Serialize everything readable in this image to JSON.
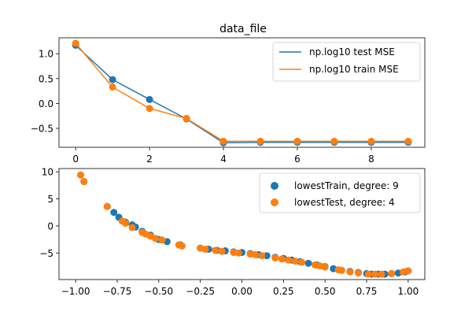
{
  "colors": {
    "test": "#1f77b4",
    "train": "#ff7f0e",
    "axis": "#000000",
    "legend_border": "#cccccc"
  },
  "chart_data": [
    {
      "type": "line",
      "title": "data_file",
      "xlabel": "",
      "ylabel": "",
      "xlim": [
        -0.45,
        9.45
      ],
      "ylim": [
        -0.88,
        1.32
      ],
      "xticks": [
        0,
        2,
        4,
        6,
        8
      ],
      "xtick_labels": [
        "0",
        "2",
        "4",
        "6",
        "8"
      ],
      "yticks": [
        -0.5,
        0.0,
        0.5,
        1.0
      ],
      "ytick_labels": [
        "−0.5",
        "0.0",
        "0.5",
        "1.0"
      ],
      "grid": false,
      "legend_position": "top-right",
      "x": [
        0,
        1,
        2,
        3,
        4,
        5,
        6,
        7,
        8,
        9
      ],
      "series": [
        {
          "name": "np.log10 test MSE",
          "color": "#1f77b4",
          "values": [
            1.17,
            0.48,
            0.08,
            -0.31,
            -0.79,
            -0.78,
            -0.78,
            -0.78,
            -0.78,
            -0.78
          ]
        },
        {
          "name": "np.log10 train MSE",
          "color": "#ff7f0e",
          "values": [
            1.21,
            0.33,
            -0.1,
            -0.3,
            -0.76,
            -0.76,
            -0.76,
            -0.76,
            -0.76,
            -0.76
          ]
        }
      ]
    },
    {
      "type": "scatter",
      "title": "",
      "xlabel": "",
      "ylabel": "",
      "xlim": [
        -1.1,
        1.1
      ],
      "ylim": [
        -9.9,
        10.6
      ],
      "xticks": [
        -1.0,
        -0.75,
        -0.5,
        -0.25,
        0.0,
        0.25,
        0.5,
        0.75,
        1.0
      ],
      "xtick_labels": [
        "−1.00",
        "−0.75",
        "−0.50",
        "−0.25",
        "0.00",
        "0.25",
        "0.50",
        "0.75",
        "1.00"
      ],
      "yticks": [
        -5,
        0,
        5,
        10
      ],
      "ytick_labels": [
        "−5",
        "0",
        "5",
        "10"
      ],
      "grid": false,
      "legend_position": "top-right",
      "series": [
        {
          "name": "lowestTrain, degree: 9",
          "color": "#1f77b4",
          "points": [
            [
              -0.97,
              9.4
            ],
            [
              -0.95,
              8.2
            ],
            [
              -0.81,
              3.6
            ],
            [
              -0.77,
              2.5
            ],
            [
              -0.74,
              1.6
            ],
            [
              -0.7,
              0.7
            ],
            [
              -0.66,
              0.2
            ],
            [
              -0.64,
              -0.2
            ],
            [
              -0.6,
              -1.0
            ],
            [
              -0.55,
              -1.7
            ],
            [
              -0.5,
              -2.5
            ],
            [
              -0.45,
              -2.9
            ],
            [
              -0.37,
              -3.5
            ],
            [
              -0.25,
              -4.1
            ],
            [
              -0.2,
              -4.3
            ],
            [
              -0.15,
              -4.5
            ],
            [
              -0.1,
              -4.6
            ],
            [
              -0.05,
              -4.8
            ],
            [
              0.0,
              -4.9
            ],
            [
              0.05,
              -5.1
            ],
            [
              0.1,
              -5.3
            ],
            [
              0.15,
              -5.5
            ],
            [
              0.2,
              -5.8
            ],
            [
              0.25,
              -6.0
            ],
            [
              0.3,
              -6.3
            ],
            [
              0.35,
              -6.6
            ],
            [
              0.4,
              -6.9
            ],
            [
              0.45,
              -7.2
            ],
            [
              0.5,
              -7.5
            ],
            [
              0.55,
              -7.9
            ],
            [
              0.6,
              -8.2
            ],
            [
              0.65,
              -8.4
            ],
            [
              0.7,
              -8.6
            ],
            [
              0.75,
              -8.8
            ],
            [
              0.78,
              -8.9
            ],
            [
              0.82,
              -8.9
            ],
            [
              0.86,
              -8.9
            ],
            [
              0.9,
              -8.8
            ],
            [
              0.94,
              -8.7
            ],
            [
              0.98,
              -8.5
            ],
            [
              1.0,
              -8.3
            ]
          ]
        },
        {
          "name": "lowestTest, degree: 4",
          "color": "#ff7f0e",
          "points": [
            [
              -0.97,
              9.4
            ],
            [
              -0.95,
              8.2
            ],
            [
              -0.81,
              3.6
            ],
            [
              -0.72,
              0.9
            ],
            [
              -0.7,
              0.5
            ],
            [
              -0.66,
              -0.3
            ],
            [
              -0.6,
              -1.2
            ],
            [
              -0.58,
              -1.5
            ],
            [
              -0.55,
              -1.9
            ],
            [
              -0.52,
              -2.3
            ],
            [
              -0.48,
              -2.6
            ],
            [
              -0.38,
              -3.5
            ],
            [
              -0.36,
              -3.7
            ],
            [
              -0.25,
              -4.1
            ],
            [
              -0.22,
              -4.3
            ],
            [
              -0.16,
              -4.5
            ],
            [
              -0.12,
              -4.7
            ],
            [
              -0.05,
              -4.9
            ],
            [
              -0.02,
              -5.0
            ],
            [
              0.05,
              -5.2
            ],
            [
              0.08,
              -5.3
            ],
            [
              0.12,
              -5.5
            ],
            [
              0.2,
              -5.9
            ],
            [
              0.24,
              -6.1
            ],
            [
              0.28,
              -6.3
            ],
            [
              0.32,
              -6.5
            ],
            [
              0.36,
              -6.7
            ],
            [
              0.44,
              -7.2
            ],
            [
              0.47,
              -7.4
            ],
            [
              0.5,
              -7.6
            ],
            [
              0.58,
              -8.1
            ],
            [
              0.6,
              -8.2
            ],
            [
              0.65,
              -8.5
            ],
            [
              0.7,
              -8.7
            ],
            [
              0.76,
              -8.9
            ],
            [
              0.8,
              -8.9
            ],
            [
              0.84,
              -8.9
            ],
            [
              0.9,
              -8.8
            ],
            [
              0.97,
              -8.5
            ],
            [
              1.0,
              -8.3
            ]
          ]
        }
      ]
    }
  ]
}
